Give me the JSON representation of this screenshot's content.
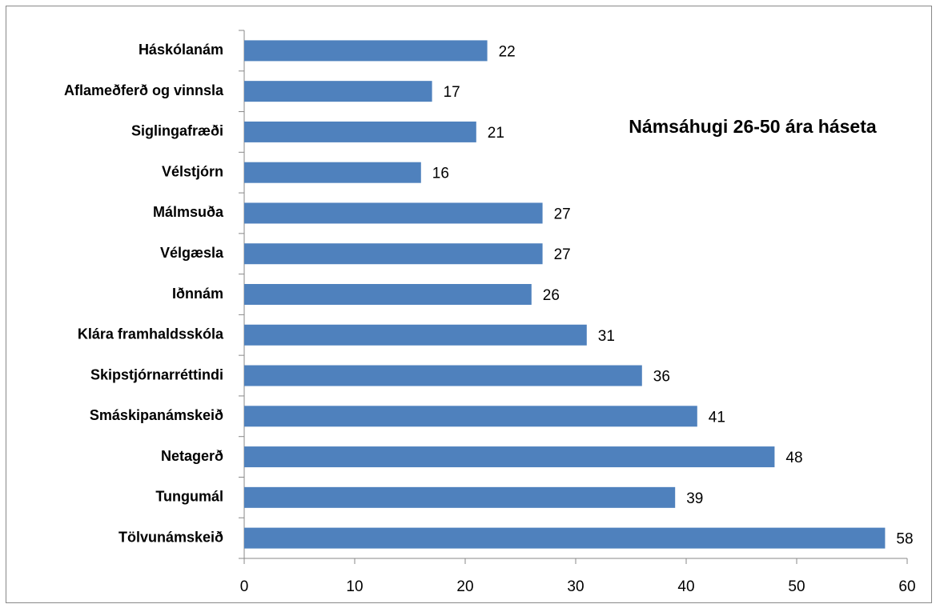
{
  "chart_data": {
    "type": "bar",
    "orientation": "horizontal",
    "title": "Námsáhugi 26-50 ára háseta",
    "categories": [
      "Háskólanám",
      "Aflameðferð og vinnsla",
      "Siglingafræði",
      "Vélstjórn",
      "Málmsuða",
      "Vélgæsla",
      "Iðnnám",
      "Klára framhaldsskóla",
      "Skipstjórnarréttindi",
      "Smáskipanámskeið",
      "Netagerð",
      "Tungumál",
      "Tölvunámskeið"
    ],
    "values": [
      22,
      17,
      21,
      16,
      27,
      27,
      26,
      31,
      36,
      41,
      48,
      39,
      58
    ],
    "color": "#4f81bd",
    "xlim": [
      0,
      60
    ],
    "xticks": [
      0,
      10,
      20,
      30,
      40,
      50,
      60
    ],
    "grid": false
  }
}
